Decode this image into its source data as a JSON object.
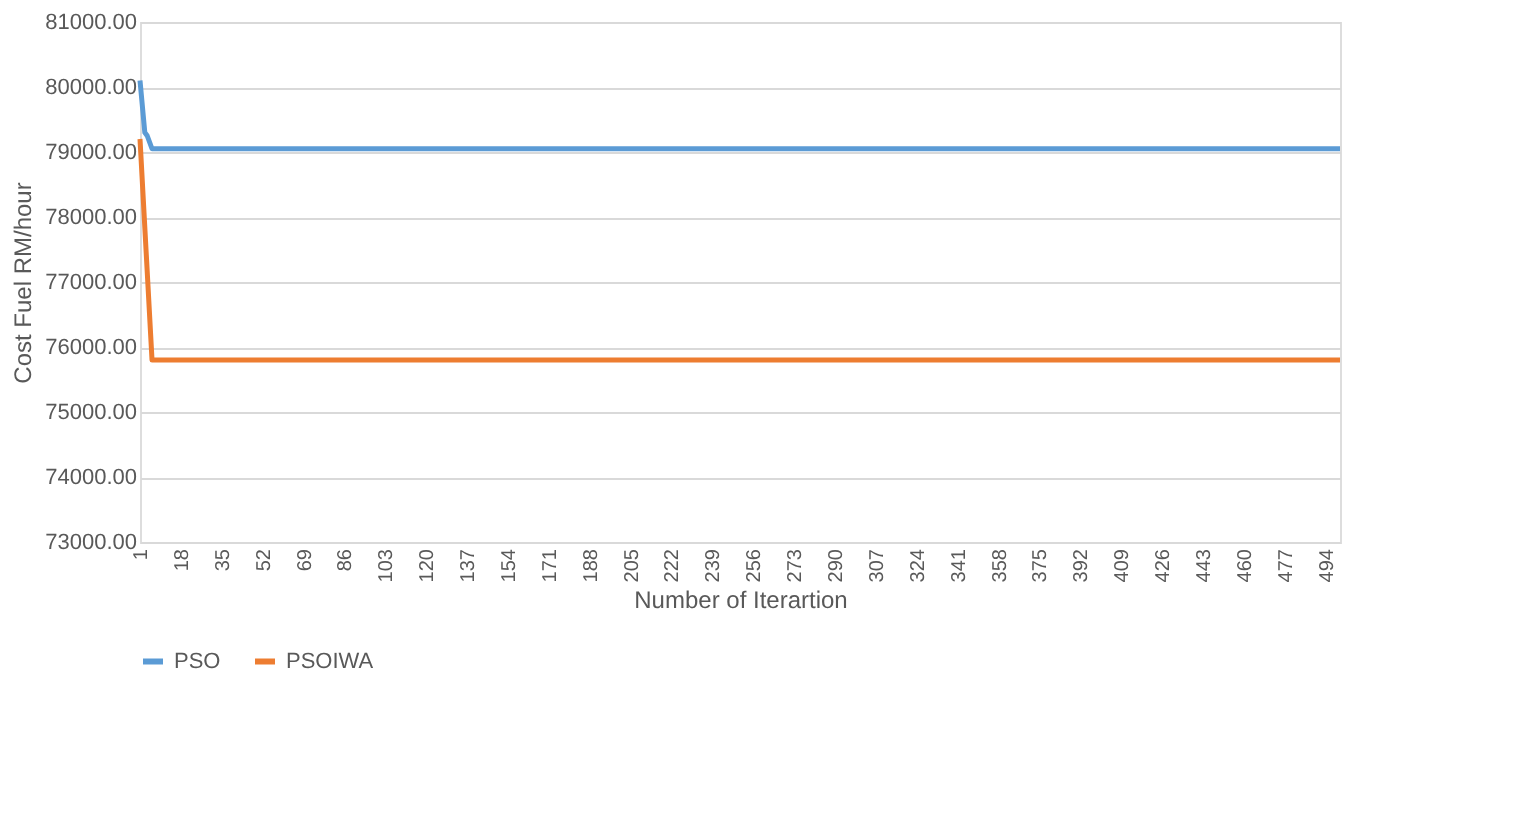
{
  "chart_data": {
    "type": "line",
    "xlabel": "Number of Iterartion",
    "ylabel": "Cost Fuel RM/hour",
    "xlim": [
      1,
      500
    ],
    "xticks": [
      1,
      18,
      35,
      52,
      69,
      86,
      103,
      120,
      137,
      154,
      171,
      188,
      205,
      222,
      239,
      256,
      273,
      290,
      307,
      324,
      341,
      358,
      375,
      392,
      409,
      426,
      443,
      460,
      477,
      494
    ],
    "ylim": [
      73000,
      81000
    ],
    "yticks": [
      {
        "value": 73000,
        "label": "73000.00"
      },
      {
        "value": 74000,
        "label": "74000.00"
      },
      {
        "value": 75000,
        "label": "75000.00"
      },
      {
        "value": 76000,
        "label": "76000.00"
      },
      {
        "value": 77000,
        "label": "77000.00"
      },
      {
        "value": 78000,
        "label": "78000.00"
      },
      {
        "value": 79000,
        "label": "79000.00"
      },
      {
        "value": 80000,
        "label": "80000.00"
      },
      {
        "value": 81000,
        "label": "81000.00"
      }
    ],
    "grid": "y",
    "legend": "bottom",
    "marker": "none",
    "line_style": "solid",
    "series": [
      {
        "name": "PSO",
        "color": "#5b9bd5",
        "x": [
          1,
          3,
          4,
          6,
          500
        ],
        "values": [
          80100,
          79300,
          79250,
          79050,
          79050
        ]
      },
      {
        "name": "PSOIWA",
        "color": "#ed7d31",
        "x": [
          1,
          6,
          500
        ],
        "values": [
          79200,
          75800,
          75800
        ]
      }
    ]
  }
}
